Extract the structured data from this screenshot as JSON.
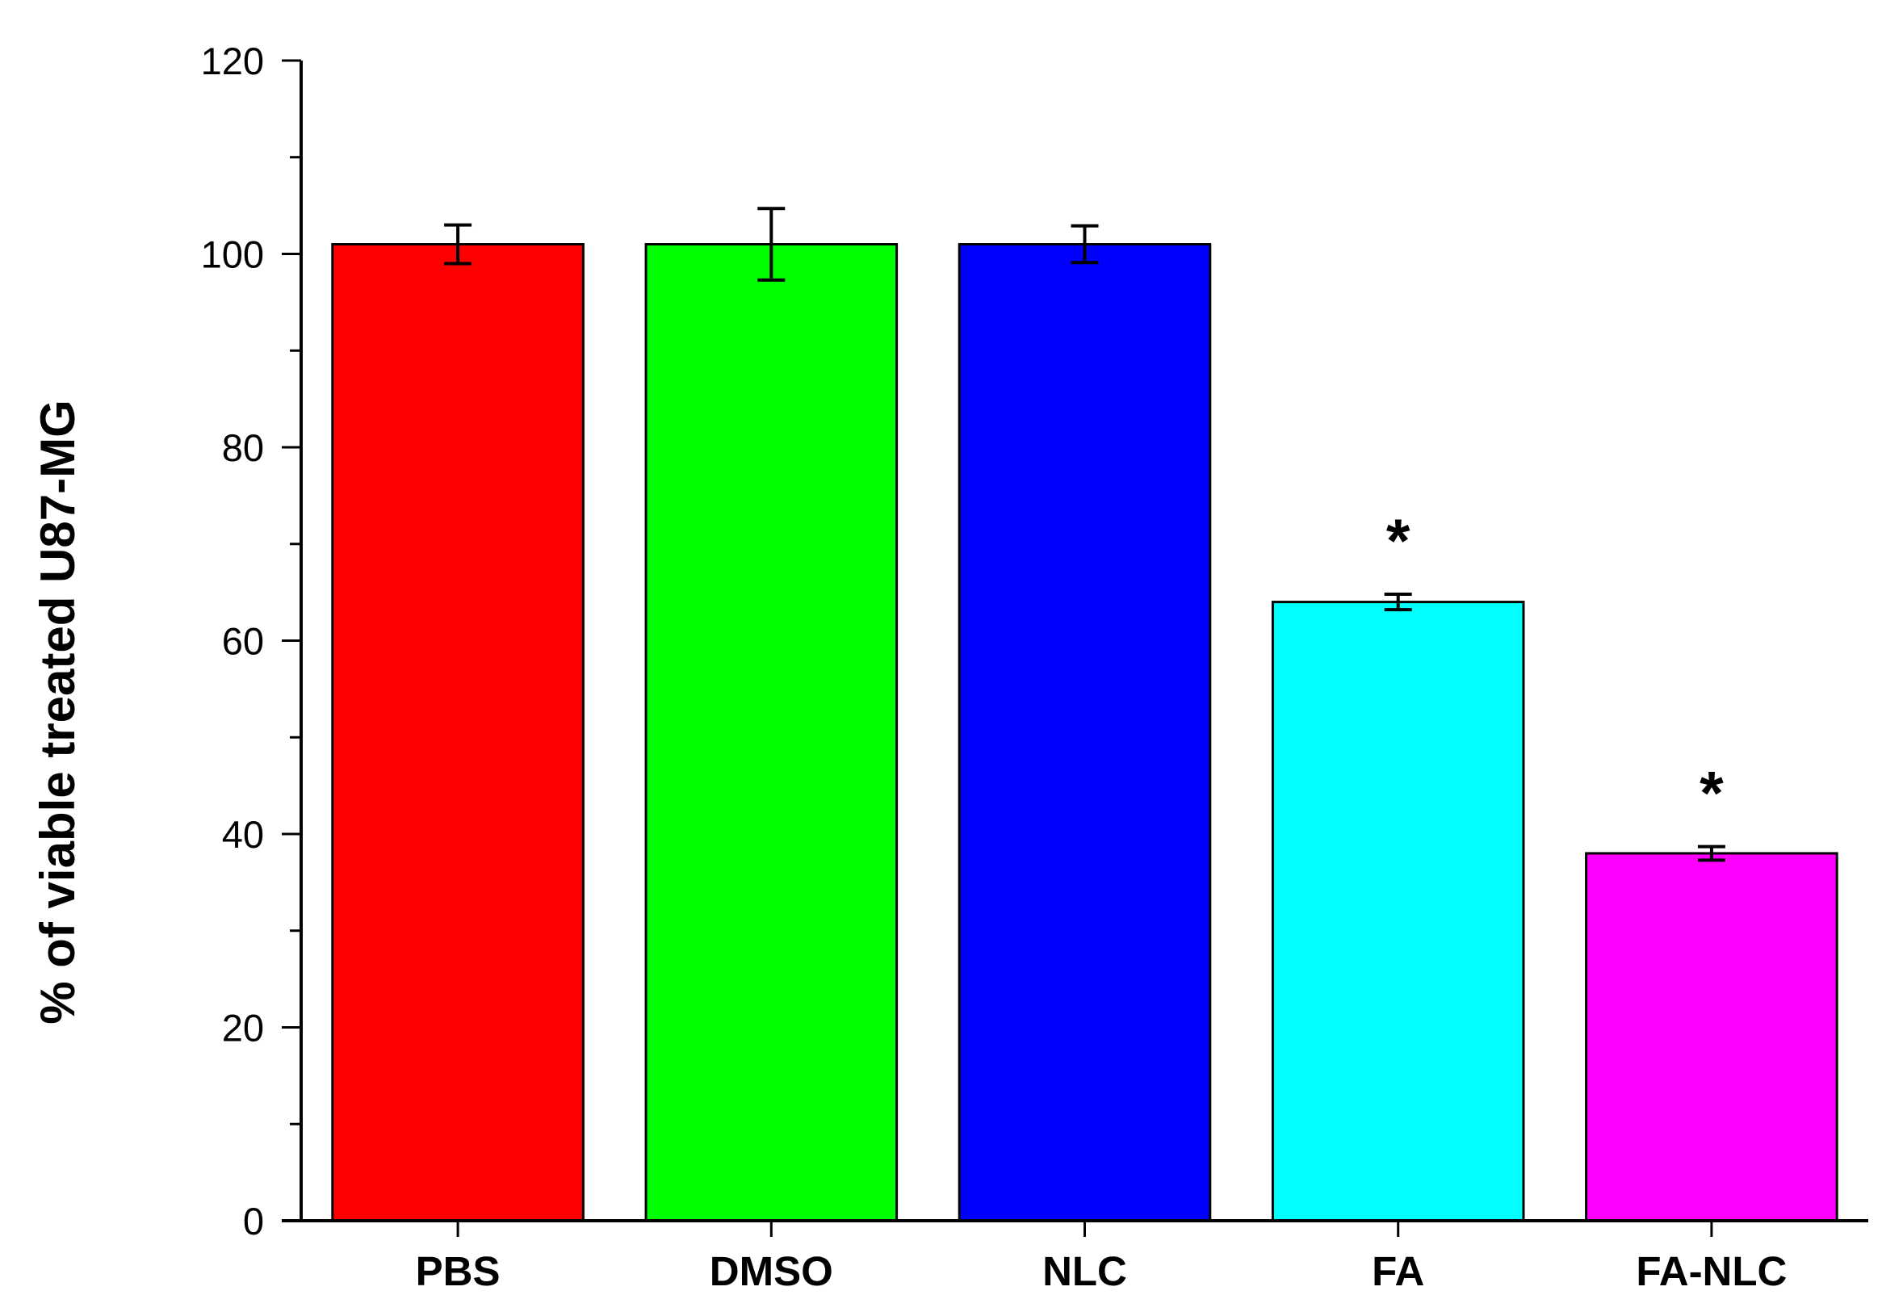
{
  "chart_data": {
    "type": "bar",
    "title": "",
    "xlabel": "",
    "ylabel": "% of viable treated U87-MG",
    "ylim": [
      0,
      120
    ],
    "yticks": [
      0,
      20,
      40,
      60,
      80,
      100,
      120
    ],
    "y_minor_step": 10,
    "grid": false,
    "legend": "none",
    "categories": [
      "PBS",
      "DMSO",
      "NLC",
      "FA",
      "FA-NLC"
    ],
    "values": [
      101,
      101,
      101,
      64,
      38
    ],
    "errors": [
      2,
      3.7,
      1.9,
      0.8,
      0.7
    ],
    "colors": [
      "#ff0000",
      "#00ff00",
      "#0000ff",
      "#00ffff",
      "#ff00ff"
    ],
    "annotations": [
      "",
      "",
      "",
      "*",
      "*"
    ]
  }
}
